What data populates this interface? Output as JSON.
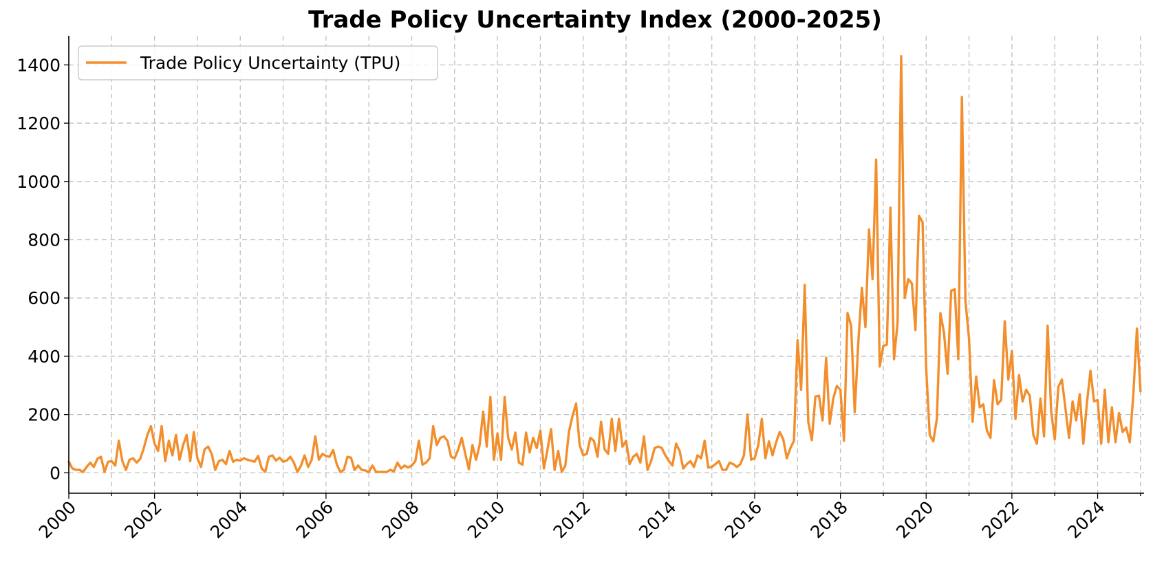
{
  "chart_data": {
    "type": "line",
    "title": "Trade Policy Uncertainty Index (2000-2025)",
    "xlabel": "",
    "ylabel": "",
    "xlim": [
      2000.0,
      2025.083
    ],
    "ylim": [
      -70,
      1500
    ],
    "x_ticks": [
      2000,
      2002,
      2004,
      2006,
      2008,
      2010,
      2012,
      2014,
      2016,
      2018,
      2020,
      2022,
      2024
    ],
    "x_tick_labels": [
      "2000",
      "2002",
      "2004",
      "2006",
      "2008",
      "2010",
      "2012",
      "2014",
      "2016",
      "2018",
      "2020",
      "2022",
      "2024"
    ],
    "y_ticks": [
      0,
      200,
      400,
      600,
      800,
      1000,
      1200,
      1400
    ],
    "y_tick_labels": [
      "0",
      "200",
      "400",
      "600",
      "800",
      "1000",
      "1200",
      "1400"
    ],
    "grid": true,
    "legend_position": "top-left",
    "series": [
      {
        "name": "Trade Policy Uncertainty (TPU)",
        "color": "#f28e2b",
        "x_start": "2000-01",
        "frequency": "monthly",
        "values": [
          38,
          15,
          10,
          10,
          3,
          20,
          35,
          20,
          48,
          55,
          3,
          38,
          40,
          25,
          110,
          40,
          10,
          45,
          50,
          35,
          48,
          85,
          130,
          160,
          100,
          75,
          160,
          40,
          110,
          60,
          130,
          45,
          95,
          130,
          40,
          140,
          50,
          20,
          80,
          90,
          65,
          10,
          40,
          45,
          30,
          75,
          38,
          45,
          42,
          50,
          45,
          42,
          38,
          58,
          15,
          3,
          55,
          60,
          42,
          52,
          38,
          42,
          55,
          35,
          3,
          25,
          60,
          20,
          45,
          125,
          45,
          65,
          58,
          55,
          78,
          30,
          3,
          10,
          55,
          52,
          10,
          25,
          10,
          8,
          3,
          25,
          3,
          3,
          3,
          3,
          10,
          5,
          35,
          15,
          25,
          18,
          25,
          40,
          110,
          28,
          35,
          50,
          160,
          95,
          120,
          125,
          110,
          55,
          50,
          80,
          120,
          65,
          12,
          95,
          45,
          95,
          210,
          90,
          260,
          45,
          135,
          45,
          260,
          120,
          80,
          138,
          35,
          28,
          138,
          70,
          120,
          85,
          145,
          15,
          80,
          150,
          10,
          75,
          3,
          25,
          140,
          195,
          238,
          95,
          60,
          65,
          120,
          110,
          55,
          175,
          80,
          65,
          185,
          75,
          185,
          90,
          110,
          30,
          55,
          65,
          35,
          125,
          10,
          40,
          85,
          90,
          85,
          60,
          40,
          25,
          100,
          75,
          15,
          30,
          40,
          20,
          60,
          50,
          110,
          18,
          20,
          30,
          40,
          10,
          10,
          35,
          30,
          20,
          30,
          60,
          200,
          45,
          50,
          95,
          185,
          50,
          108,
          60,
          105,
          140,
          115,
          50,
          85,
          110,
          455,
          285,
          645,
          175,
          112,
          262,
          265,
          180,
          395,
          168,
          255,
          298,
          285,
          110,
          548,
          505,
          208,
          445,
          635,
          500,
          835,
          665,
          1075,
          365,
          435,
          440,
          910,
          390,
          515,
          1430,
          600,
          665,
          650,
          490,
          882,
          860,
          360,
          130,
          108,
          185,
          548,
          480,
          340,
          625,
          630,
          390,
          1290,
          590,
          460,
          175,
          330,
          225,
          235,
          145,
          120,
          318,
          235,
          250,
          520,
          320,
          418,
          185,
          335,
          245,
          285,
          265,
          130,
          100,
          255,
          125,
          505,
          210,
          115,
          295,
          320,
          220,
          120,
          245,
          180,
          270,
          100,
          240,
          350,
          245,
          250,
          100,
          285,
          105,
          225,
          105,
          205,
          140,
          155,
          105,
          270,
          495,
          280
        ]
      }
    ]
  }
}
